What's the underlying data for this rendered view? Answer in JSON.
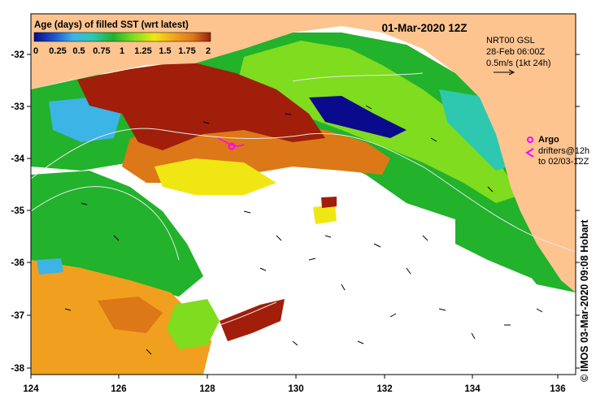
{
  "map": {
    "title": "01-Mar-2020 12Z",
    "colorbar": {
      "title": "Age (days) of filled SST (wrt latest)",
      "ticks": [
        "0",
        "0.25",
        "0.5",
        "0.75",
        "1",
        "1.25",
        "1.5",
        "1.75",
        "2"
      ],
      "colors": [
        "#0a0a8c",
        "#1e5ad2",
        "#3cb4e6",
        "#2ec8b0",
        "#22b22c",
        "#7fdc1e",
        "#f0e614",
        "#f0a01e",
        "#dc7818",
        "#a01e0a"
      ]
    },
    "model_info": {
      "line1": "NRT00 GSL",
      "line2": "28-Feb 06:00Z",
      "line3": "0.5m/s (1kt 24h)"
    },
    "legend": {
      "argo_label": "Argo",
      "argo_color": "#ff00ff",
      "drifters_line1": "drifters@12h",
      "drifters_line2": "to 02/03-12Z",
      "drifter_color": "#ff00ff"
    },
    "lat_ticks": [
      "-32",
      "-33",
      "-34",
      "-35",
      "-36",
      "-37",
      "-38"
    ],
    "lon_ticks": [
      "124",
      "126",
      "128",
      "130",
      "132",
      "134",
      "136"
    ],
    "credit": "© IMOS 03-Mar-2020 09:08 Hobart",
    "land_color": "#fdc490",
    "missing_color": "#ffffff"
  }
}
